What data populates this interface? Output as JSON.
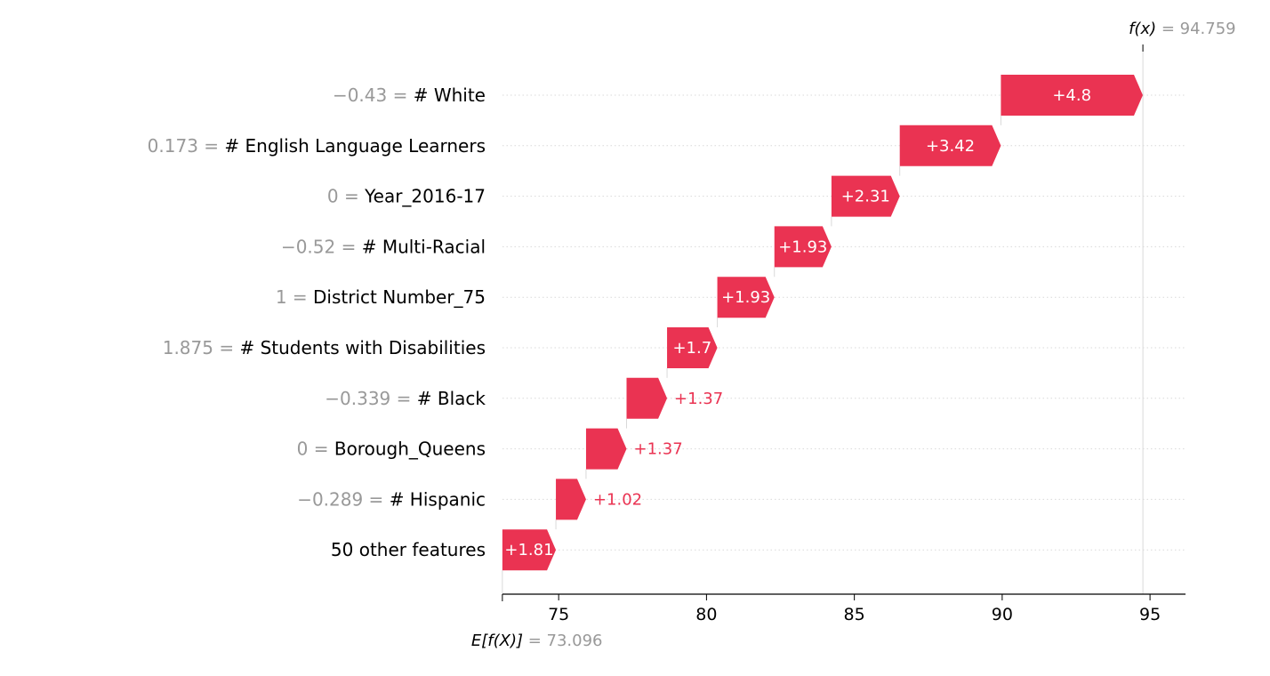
{
  "chart_data": {
    "type": "bar",
    "base_value": 73.096,
    "final_value": 94.759,
    "fx_label": "f(x)",
    "fx_eq": " = ",
    "fx_value": "94.759",
    "ex_label": "E[f(X)]",
    "ex_eq": " = ",
    "ex_value": "73.096",
    "xlim": [
      73.1,
      96.2
    ],
    "xticks": [
      75,
      80,
      85,
      90,
      95
    ],
    "features": [
      {
        "value": "−0.43",
        "name": "# White",
        "contribution": 4.8,
        "label": "+4.8"
      },
      {
        "value": "0.173",
        "name": "# English Language Learners",
        "contribution": 3.42,
        "label": "+3.42"
      },
      {
        "value": "0",
        "name": "Year_2016-17",
        "contribution": 2.31,
        "label": "+2.31"
      },
      {
        "value": "−0.52",
        "name": "# Multi-Racial",
        "contribution": 1.93,
        "label": "+1.93"
      },
      {
        "value": "1",
        "name": "District Number_75",
        "contribution": 1.93,
        "label": "+1.93"
      },
      {
        "value": "1.875",
        "name": "# Students with Disabilities",
        "contribution": 1.7,
        "label": "+1.7"
      },
      {
        "value": "−0.339",
        "name": "# Black",
        "contribution": 1.37,
        "label": "+1.37"
      },
      {
        "value": "0",
        "name": "Borough_Queens",
        "contribution": 1.37,
        "label": "+1.37"
      },
      {
        "value": "−0.289",
        "name": "# Hispanic",
        "contribution": 1.02,
        "label": "+1.02"
      },
      {
        "value": "",
        "name": "50 other features",
        "contribution": 1.81,
        "label": "+1.81"
      }
    ],
    "colors": {
      "positive": "#ea3352",
      "positive_text": "#ea3352",
      "inside_text": "#ffffff",
      "axis": "#000000",
      "grid": "#d9d9d9",
      "muted": "#999999"
    }
  }
}
